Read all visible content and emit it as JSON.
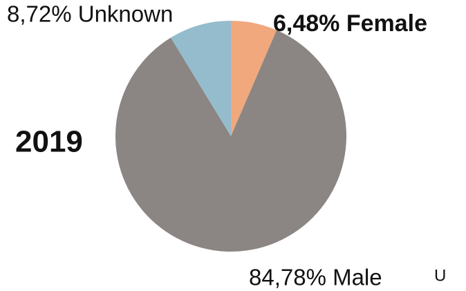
{
  "chart_data": {
    "type": "pie",
    "title": "2019",
    "values": [
      6.48,
      84.78,
      8.72
    ],
    "value_labels": [
      "6,48% Female",
      "84,78% Male",
      "8,72% Unknown"
    ],
    "colors": [
      "#f0a87c",
      "#8b8583",
      "#94bccc"
    ],
    "annotation": "U"
  }
}
